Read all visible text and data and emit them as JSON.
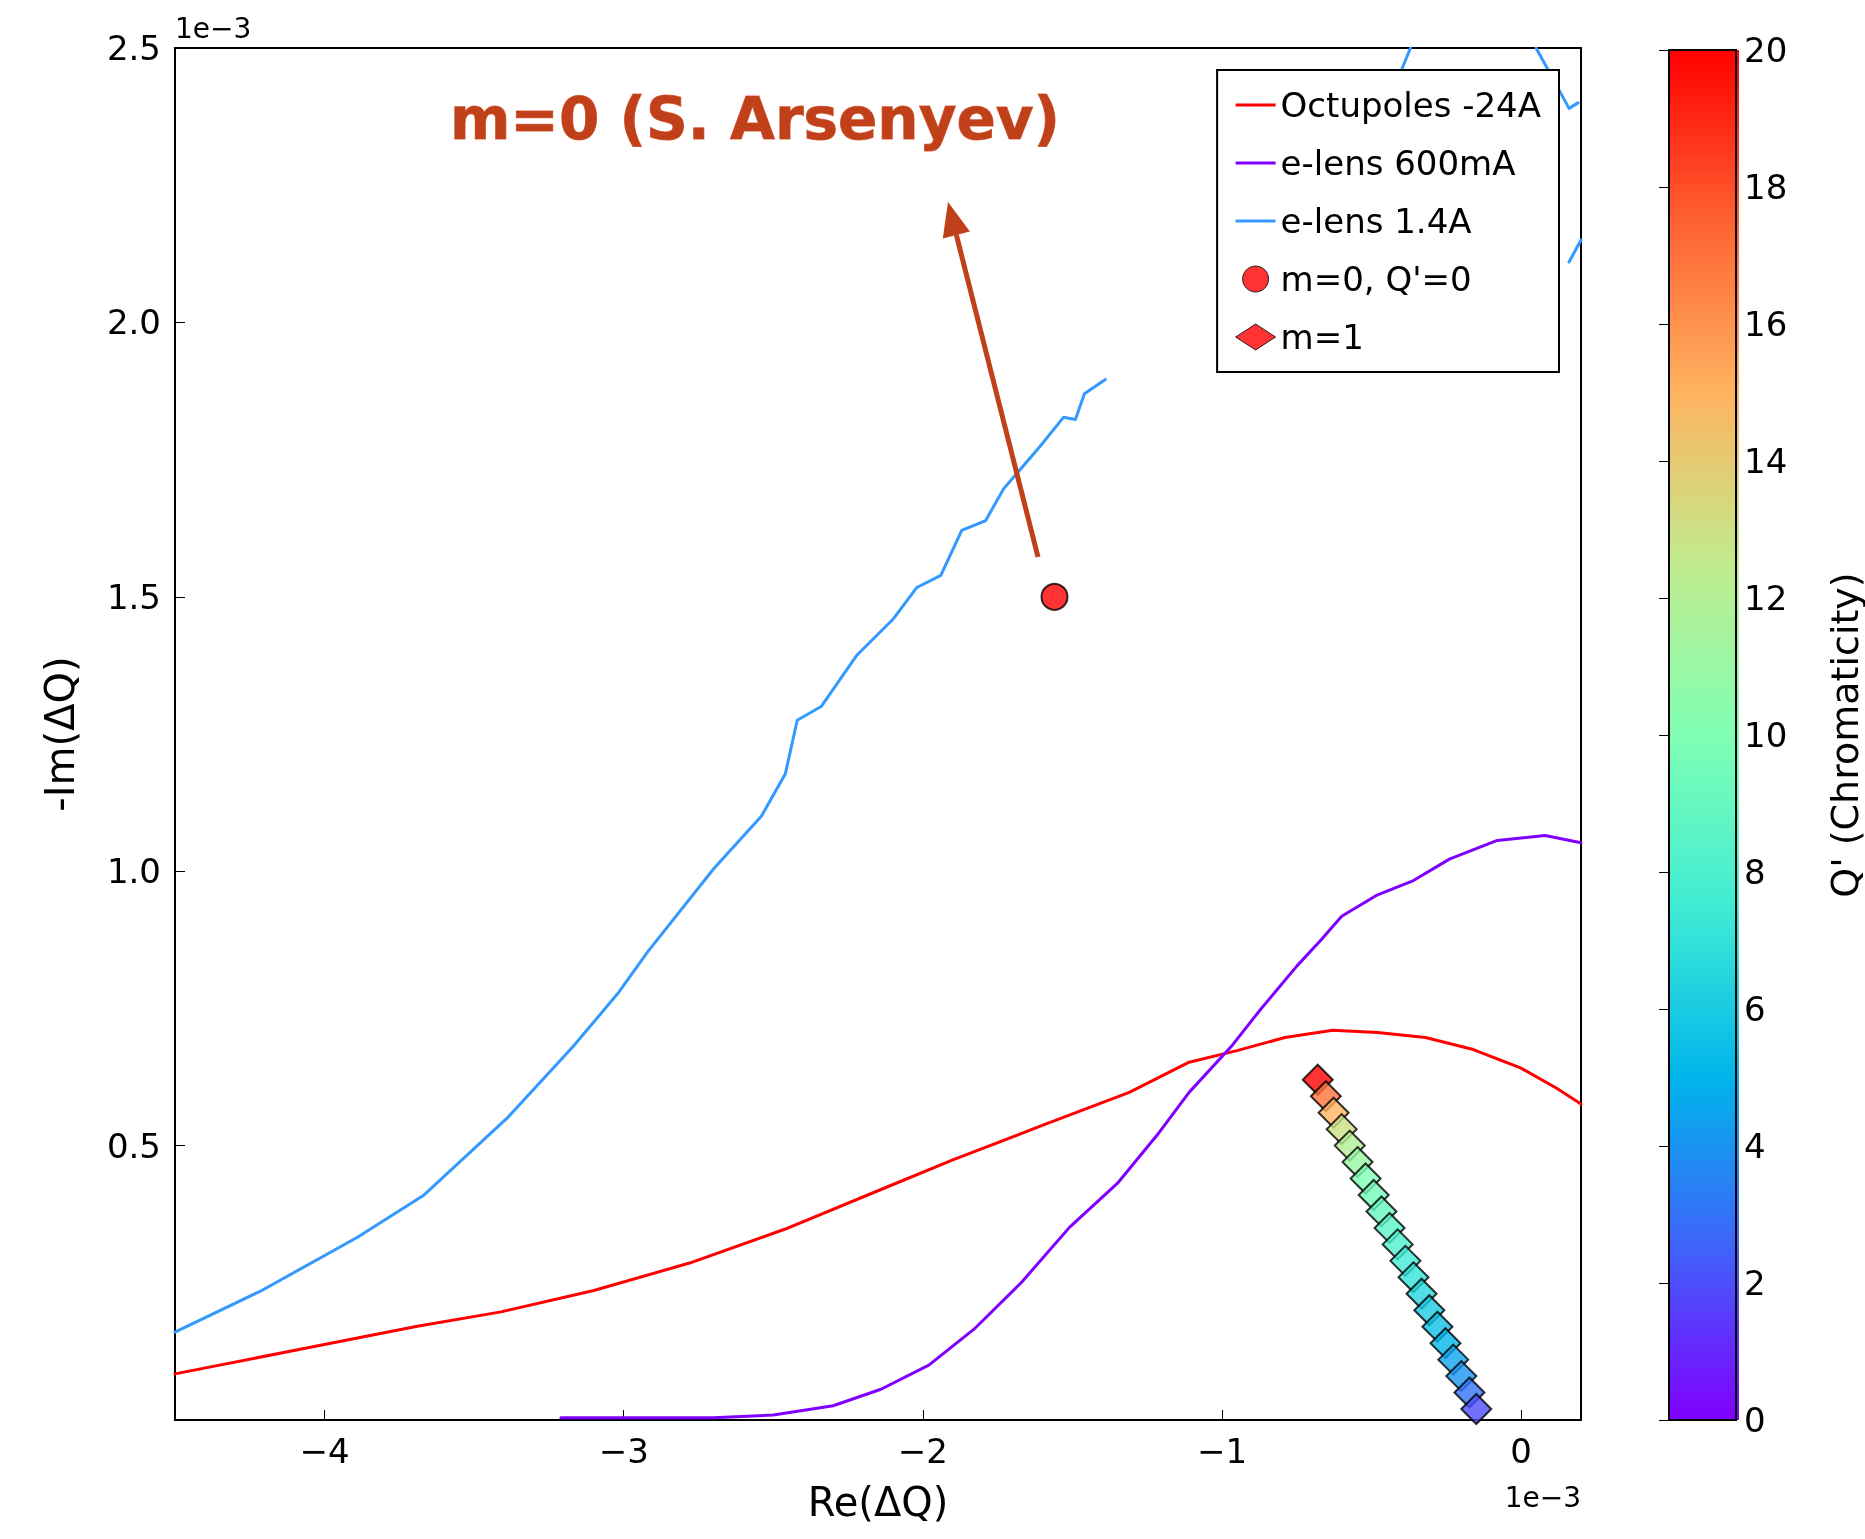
{
  "chart_data": {
    "type": "line",
    "xlabel": "Re(ΔQ)",
    "ylabel": "-Im(ΔQ)",
    "clabel": "Q' (Chromaticity)",
    "xlim": [
      -4.5,
      0.2
    ],
    "ylim": [
      0,
      2.5
    ],
    "xticks": [
      {
        "value": -4,
        "label": "−4"
      },
      {
        "value": -3,
        "label": "−3"
      },
      {
        "value": -2,
        "label": "−2"
      },
      {
        "value": -1,
        "label": "−1"
      },
      0
    ],
    "yticks": [
      {
        "value": 0.5,
        "label": "0.5"
      },
      {
        "value": 1,
        "label": "1.0"
      },
      {
        "value": 1.5,
        "label": "1.5"
      },
      {
        "value": 2,
        "label": "2.0"
      },
      {
        "value": 2.5,
        "label": "2.5"
      }
    ],
    "clim": [
      0,
      20
    ],
    "cticks": [
      0,
      2,
      4,
      6,
      8,
      10,
      12,
      14,
      16,
      18,
      20
    ],
    "grid": false,
    "legend": "top right",
    "line_style": "solid",
    "marker": "none",
    "annotations": [
      "m=0 (S. Arsenyev)",
      "1e−3",
      "1e−3"
    ],
    "series": [
      {
        "name": "Octupoles -24A",
        "color": "#ff0000",
        "x": [
          -4.5,
          -4.09,
          -3.69,
          -3.41,
          -3.1,
          -2.78,
          -2.46,
          -2.14,
          -1.9,
          -1.59,
          -1.31,
          -1.11,
          -0.95,
          -0.79,
          -0.63,
          -0.48,
          -0.32,
          -0.16,
          0,
          0.12,
          0.2
        ],
        "values": [
          0.084,
          0.128,
          0.171,
          0.197,
          0.236,
          0.286,
          0.348,
          0.42,
          0.474,
          0.539,
          0.597,
          0.652,
          0.673,
          0.697,
          0.71,
          0.706,
          0.697,
          0.675,
          0.641,
          0.604,
          0.576
        ]
      },
      {
        "name": "e-lens 600mA",
        "color": "#8000ff",
        "x": [
          -3.21,
          -2.7,
          -2.5,
          -2.3,
          -2.14,
          -1.98,
          -1.83,
          -1.67,
          -1.51,
          -1.35,
          -1.21,
          -1.11,
          -0.97,
          -0.87,
          -0.75,
          -0.67,
          -0.6,
          -0.48,
          -0.36,
          -0.24,
          -0.08,
          0.08,
          0.2
        ],
        "values": [
          0.004,
          0.004,
          0.009,
          0.026,
          0.056,
          0.1,
          0.165,
          0.251,
          0.351,
          0.431,
          0.524,
          0.597,
          0.68,
          0.749,
          0.827,
          0.874,
          0.918,
          0.957,
          0.983,
          1.022,
          1.056,
          1.065,
          1.052
        ]
      },
      {
        "name": "e-lens 1.4A",
        "color": "#3399ff",
        "x": [
          -4.5,
          -4.21,
          -3.89,
          -3.67,
          -3.39,
          -3.17,
          -3.02,
          -2.92,
          -2.7,
          -2.54,
          -2.46,
          -2.42,
          -2.34,
          -2.22,
          -2.1,
          -2.02,
          -1.94,
          -1.87,
          -1.79,
          -1.73,
          -1.61,
          -1.53,
          -1.49,
          -1.46,
          -1.39,
          -1.0,
          -0.4,
          -0.37,
          -0.2,
          0.05,
          0.16,
          0.19
        ],
        "values": [
          0.16,
          0.236,
          0.333,
          0.409,
          0.55,
          0.68,
          0.777,
          0.853,
          1.004,
          1.1,
          1.177,
          1.275,
          1.3,
          1.394,
          1.459,
          1.517,
          1.539,
          1.621,
          1.639,
          1.697,
          1.773,
          1.827,
          1.823,
          1.87,
          1.896,
          null,
          2.46,
          2.5,
          null,
          2.5,
          2.39,
          2.4
        ]
      },
      {
        "color": "#3399ff",
        "x": [
          0.16,
          0.2
        ],
        "values": [
          2.11,
          2.15
        ]
      },
      {
        "name": "m=0, Q'=0",
        "type": "scatter",
        "marker": "circle",
        "color": "#ff0000",
        "x": [
          -1.56
        ],
        "values": [
          1.5
        ]
      },
      {
        "name": "m=1",
        "type": "scatter",
        "marker": "diamond",
        "colors": [
          "#ff0000",
          "#ff723b",
          "#ffb360",
          "#cde084",
          "#b3ef95",
          "#9af7a4",
          "#80ffb4",
          "#73fbba",
          "#66f7c1",
          "#5af4c7",
          "#4df0ce",
          "#40ecd4",
          "#33e1d9",
          "#26d6dd",
          "#1acbe2",
          "#0dc0e6",
          "#00b5eb",
          "#0da4ee",
          "#1a94f1",
          "#3373f7",
          "#4d4efb"
        ],
        "x": [
          -0.68,
          -0.653,
          -0.627,
          -0.6,
          -0.573,
          -0.547,
          -0.52,
          -0.493,
          -0.467,
          -0.44,
          -0.413,
          -0.387,
          -0.36,
          -0.333,
          -0.307,
          -0.28,
          -0.253,
          -0.227,
          -0.2,
          -0.173,
          -0.15
        ],
        "values": [
          0.62,
          0.59,
          0.56,
          0.53,
          0.5,
          0.47,
          0.44,
          0.41,
          0.38,
          0.35,
          0.32,
          0.29,
          0.26,
          0.23,
          0.2,
          0.17,
          0.14,
          0.11,
          0.08,
          0.05,
          0.02
        ],
        "cvalues": [
          20,
          17,
          15,
          13,
          12,
          11,
          10,
          9.5,
          9,
          8.5,
          8,
          7.5,
          7,
          6.5,
          6,
          5.5,
          5,
          4.5,
          4,
          3,
          2
        ]
      }
    ]
  }
}
